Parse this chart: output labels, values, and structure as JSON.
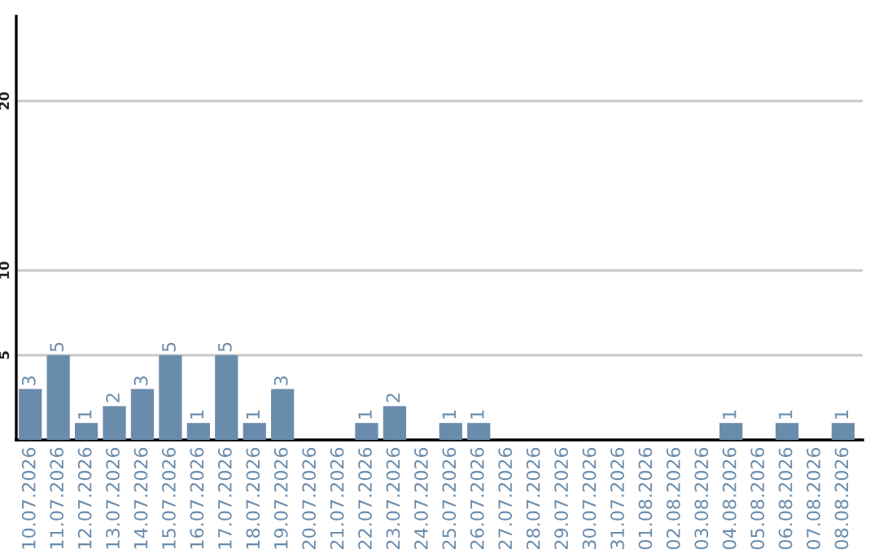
{
  "chart_data": {
    "type": "bar",
    "categories": [
      "10.07.2026",
      "11.07.2026",
      "12.07.2026",
      "13.07.2026",
      "14.07.2026",
      "15.07.2026",
      "16.07.2026",
      "17.07.2026",
      "18.07.2026",
      "19.07.2026",
      "20.07.2026",
      "21.07.2026",
      "22.07.2026",
      "23.07.2026",
      "24.07.2026",
      "25.07.2026",
      "26.07.2026",
      "27.07.2026",
      "28.07.2026",
      "29.07.2026",
      "30.07.2026",
      "31.07.2026",
      "01.08.2026",
      "02.08.2026",
      "03.08.2026",
      "04.08.2026",
      "05.08.2026",
      "06.08.2026",
      "07.08.2026",
      "08.08.2026"
    ],
    "values": [
      3,
      5,
      1,
      2,
      3,
      5,
      1,
      5,
      1,
      3,
      0,
      0,
      1,
      2,
      0,
      1,
      1,
      0,
      0,
      0,
      0,
      0,
      0,
      0,
      0,
      1,
      0,
      1,
      0,
      1
    ],
    "value_labels": [
      "3",
      "5",
      "1",
      "2",
      "3",
      "5",
      "1",
      "5",
      "1",
      "3",
      null,
      null,
      "1",
      "2",
      null,
      "1",
      "1",
      null,
      null,
      null,
      null,
      null,
      null,
      null,
      null,
      "1",
      null,
      "1",
      null,
      "1"
    ],
    "color": "#6a8cac",
    "ylim": [
      0,
      25
    ],
    "yticks": [
      5,
      10,
      20
    ],
    "grid": "y"
  }
}
